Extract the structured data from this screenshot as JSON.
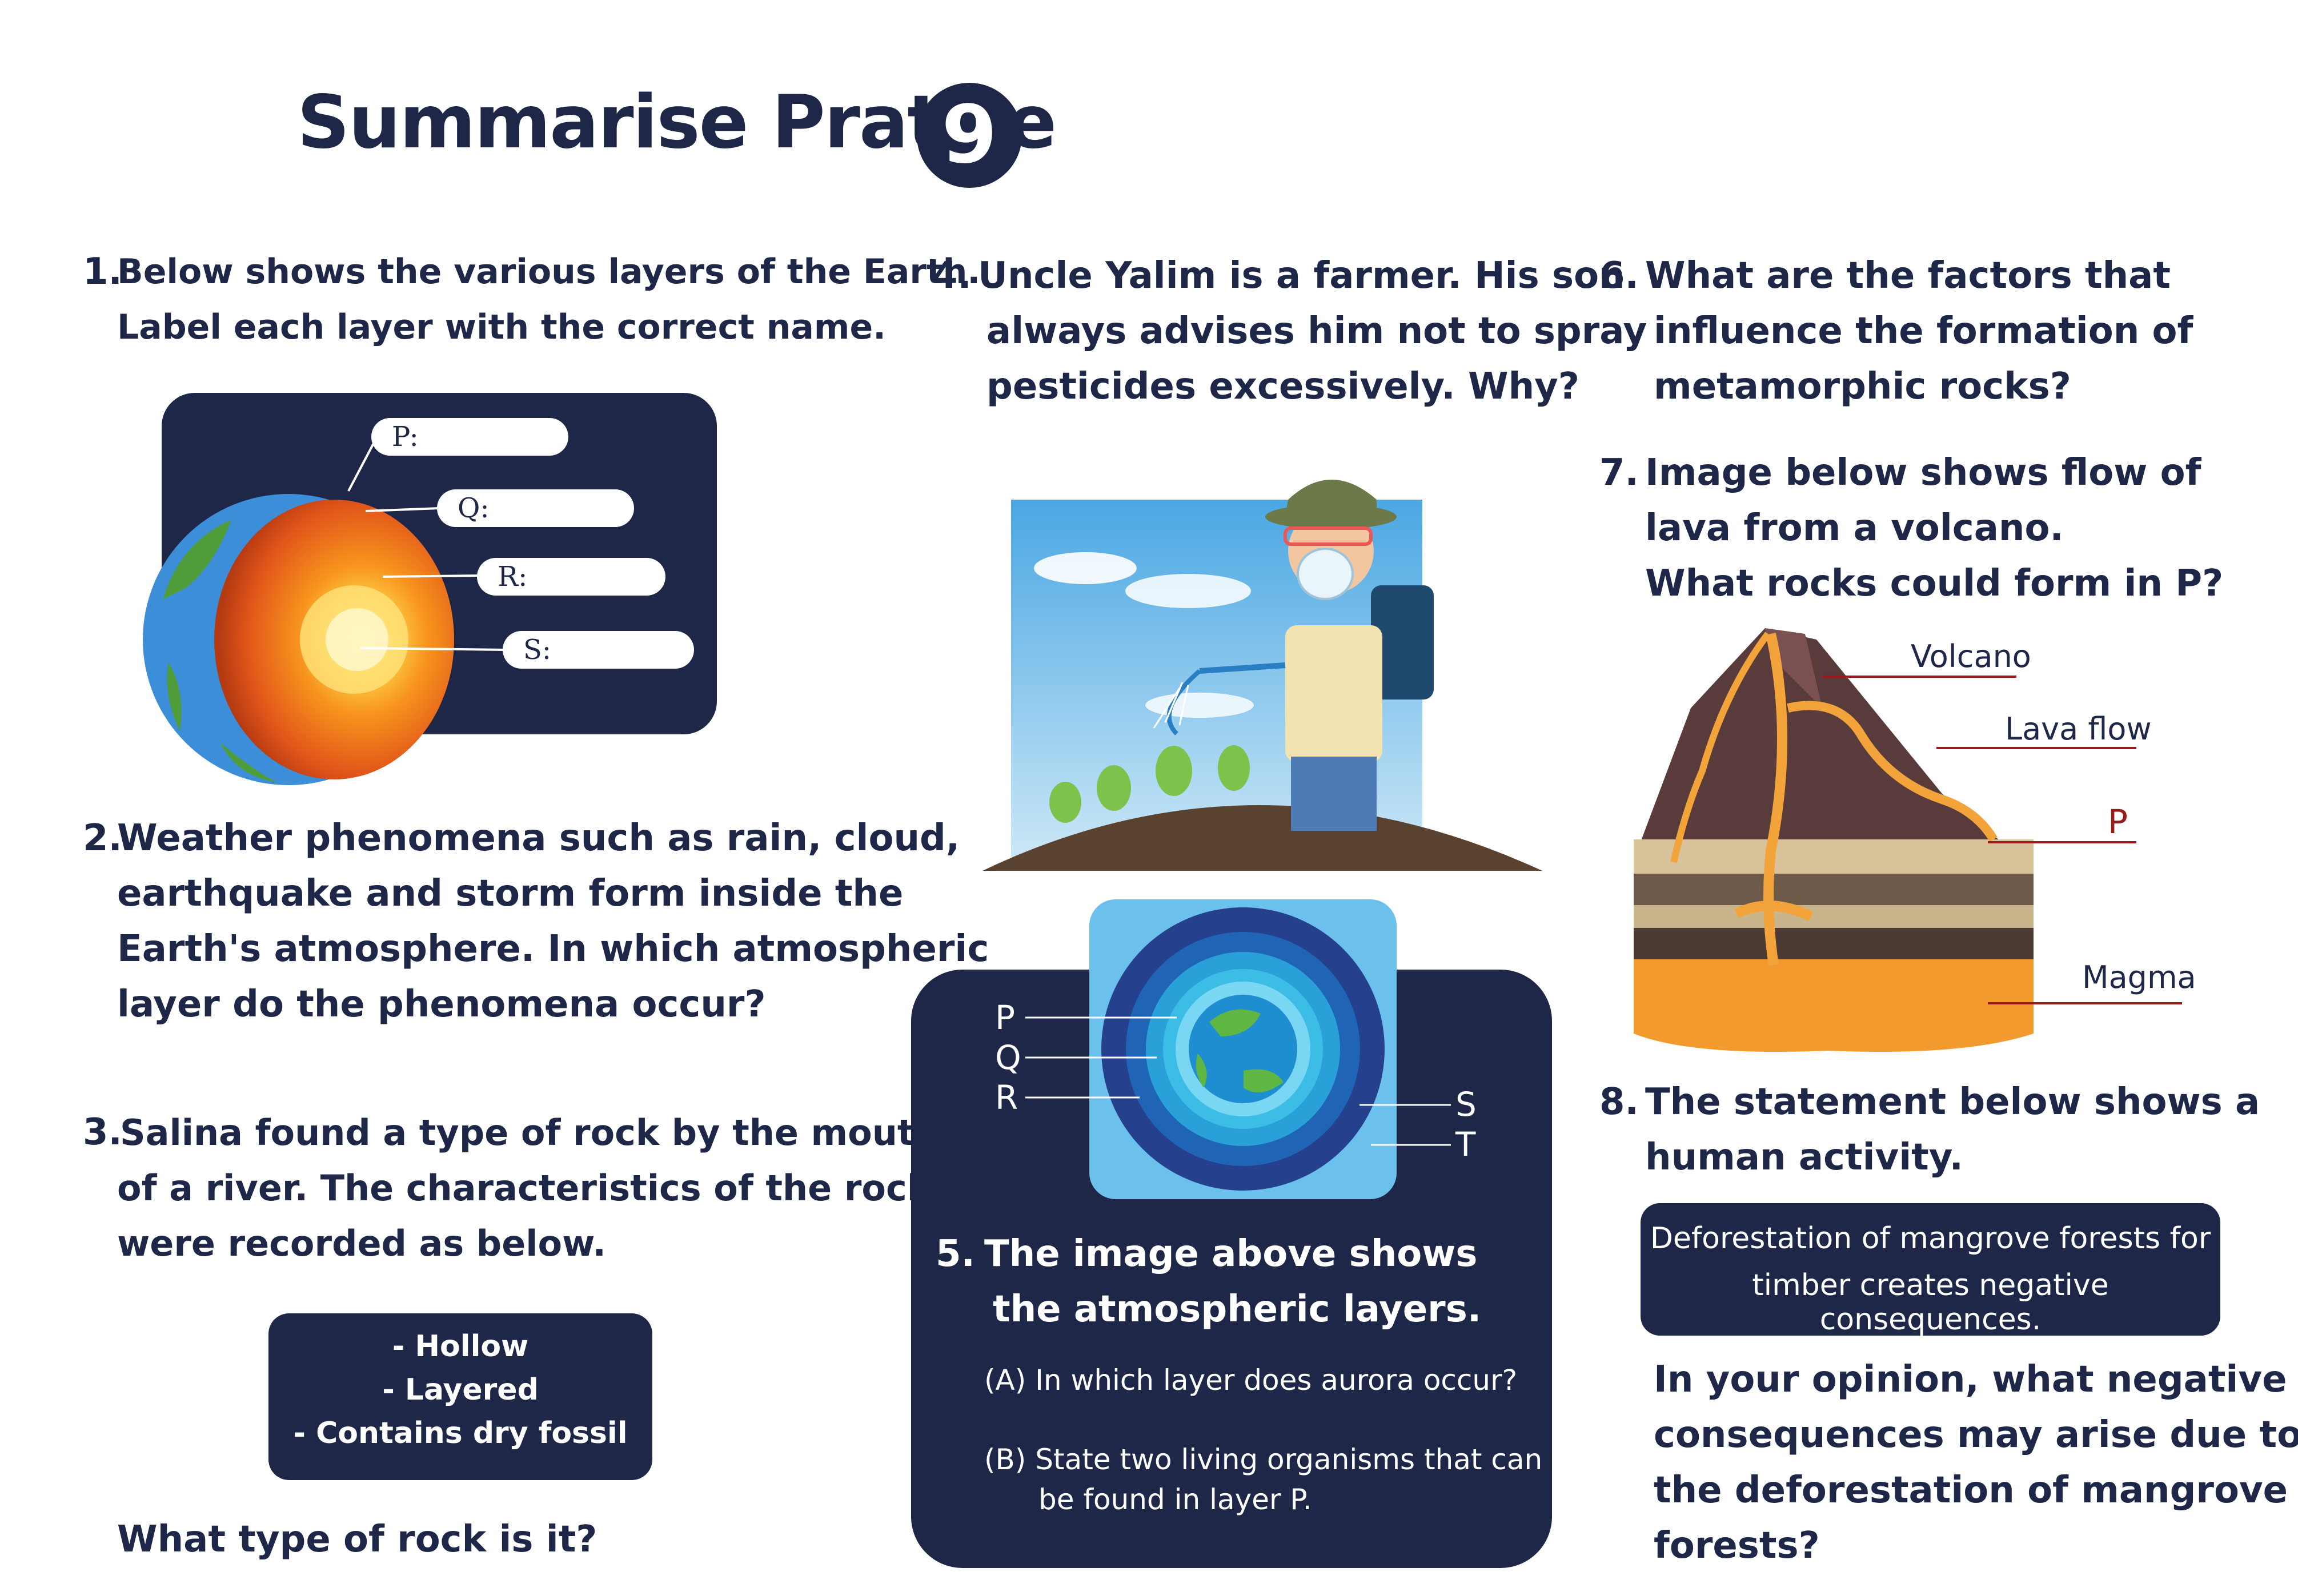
{
  "title": {
    "text": "Summarise Pratice",
    "badge": "9"
  },
  "q1": {
    "number": "1.",
    "lines": [
      "Below shows the various layers of the Earth.",
      "Label each layer with the correct name."
    ],
    "labels": [
      "P:",
      "Q:",
      "R:",
      "S:"
    ]
  },
  "q2": {
    "number": "2.",
    "lines": [
      "Weather phenomena such as rain, cloud,",
      "earthquake and storm form inside the",
      "Earth's atmosphere. In which atmospheric",
      "layer do the phenomena occur?"
    ]
  },
  "q3": {
    "number": "3.",
    "lines": [
      "Salina found a type of rock by the mouth",
      "of a river. The characteristics of the rock",
      "were recorded as below."
    ],
    "characteristics": [
      "- Hollow",
      "- Layered",
      "- Contains dry fossil"
    ],
    "question": "What type of rock is it?"
  },
  "q4": {
    "number": "4.",
    "lines": [
      "Uncle Yalim is a farmer. His son",
      "always advises him not to spray",
      "pesticides excessively. Why?"
    ]
  },
  "q5": {
    "number": "5.",
    "lines": [
      "The image above shows",
      "the atmospheric layers."
    ],
    "layer_labels_left": [
      "P",
      "Q",
      "R"
    ],
    "layer_labels_right": [
      "S",
      "T"
    ],
    "part_a": "(A) In which layer does aurora occur?",
    "part_b": [
      "(B) State two living organisms that can",
      "be found in layer P."
    ]
  },
  "q6": {
    "number": "6.",
    "lines": [
      "What are the factors that",
      "influence the formation of",
      "metamorphic rocks?"
    ]
  },
  "q7": {
    "number": "7.",
    "lines": [
      "Image below shows flow of",
      "lava from a volcano.",
      "What rocks could form in P?"
    ],
    "labels": {
      "volcano": "Volcano",
      "lava_flow": "Lava flow",
      "p": "P",
      "magma": "Magma"
    }
  },
  "q8": {
    "number": "8.",
    "lines": [
      "The statement below shows a",
      "human activity."
    ],
    "statement": [
      "Deforestation of mangrove forests for",
      "timber creates negative consequences."
    ],
    "question": [
      "In your opinion, what negative",
      "consequences may arise due to",
      "the deforestation of mangrove",
      "forests?"
    ]
  },
  "colors": {
    "navy": "#1e2748",
    "label_red": "#9b1b1b",
    "sky": "#6cc0ec"
  }
}
